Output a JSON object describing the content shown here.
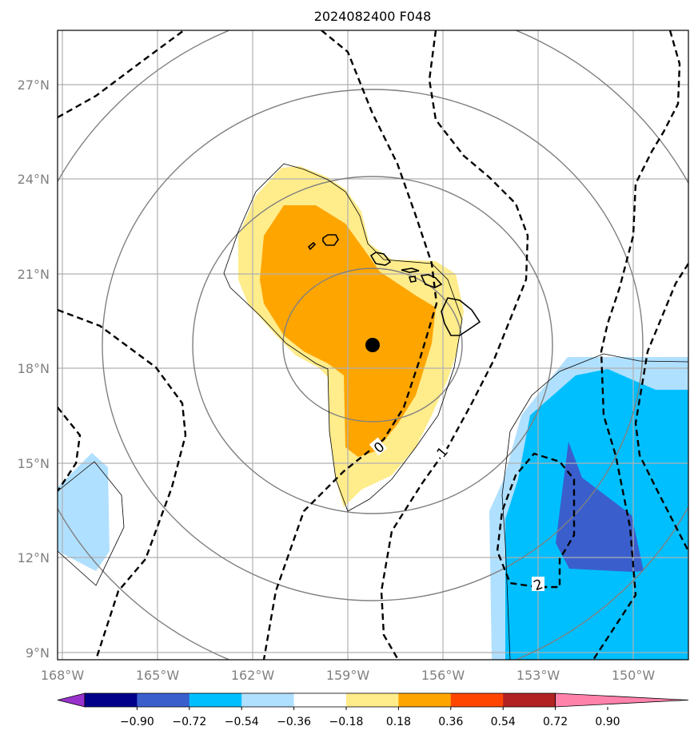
{
  "title": "2024082400 F048",
  "lat_labels": [
    "27°N",
    "24°N",
    "21°N",
    "18°N",
    "15°N",
    "12°N",
    "9°N"
  ],
  "lon_labels": [
    "168°W",
    "165°W",
    "162°W",
    "159°W",
    "156°W",
    "153°W",
    "150°W"
  ],
  "contour_labels": [
    "0",
    "1",
    "2"
  ],
  "colorbar": {
    "ticks": [
      "−0.90",
      "−0.72",
      "−0.54",
      "−0.36",
      "−0.18",
      "0.18",
      "0.36",
      "0.54",
      "0.72",
      "0.90"
    ],
    "colors": [
      "#9932cc",
      "#00008b",
      "#3a5fcd",
      "#00bfff",
      "#b0e0ff",
      "#ffffff",
      "#ffec8b",
      "#ffa500",
      "#ff4500",
      "#b22222",
      "#ff82ab"
    ]
  },
  "storm_center": {
    "lat": 18.8,
    "lon": -158.2
  }
}
